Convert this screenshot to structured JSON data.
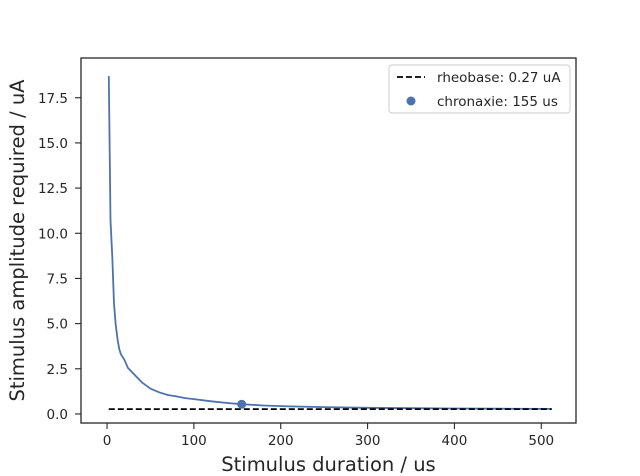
{
  "chart_data": {
    "type": "line",
    "title": "",
    "xlabel": "Stimulus duration / us",
    "ylabel": "Stimulus amplitude required / uA",
    "xlim": [
      -30,
      540
    ],
    "ylim": [
      -0.5,
      19.7
    ],
    "xticks": [
      0,
      100,
      200,
      300,
      400,
      500
    ],
    "xtick_labels": [
      "0",
      "100",
      "200",
      "300",
      "400",
      "500"
    ],
    "yticks": [
      0.0,
      2.5,
      5.0,
      7.5,
      10.0,
      12.5,
      15.0,
      17.5
    ],
    "ytick_labels": [
      "0.0",
      "2.5",
      "5.0",
      "7.5",
      "10.0",
      "12.5",
      "15.0",
      "17.5"
    ],
    "grid": false,
    "legend_position": "upper right",
    "series": [
      {
        "kind": "line",
        "color": "#4c72b0",
        "x": [
          2,
          4,
          6,
          8,
          10,
          12,
          14,
          16,
          20,
          24,
          30,
          40,
          50,
          60,
          70,
          80,
          90,
          100,
          120,
          140,
          155,
          180,
          210,
          250,
          300,
          350,
          400,
          450,
          512
        ],
        "y": [
          18.7,
          10.7,
          8.7,
          6.1,
          4.95,
          4.15,
          3.6,
          3.3,
          3.0,
          2.55,
          2.25,
          1.75,
          1.4,
          1.2,
          1.05,
          0.97,
          0.88,
          0.82,
          0.7,
          0.6,
          0.54,
          0.47,
          0.42,
          0.38,
          0.34,
          0.32,
          0.3,
          0.29,
          0.28
        ]
      },
      {
        "kind": "hline",
        "name": "rheobase: 0.27 uA",
        "color": "#000000",
        "dash": "dashed",
        "x": [
          2,
          512
        ],
        "y": [
          0.27,
          0.27
        ]
      },
      {
        "kind": "point",
        "name": "chronaxie: 155 us",
        "color": "#4c72b0",
        "x": [
          155
        ],
        "y": [
          0.54
        ]
      }
    ]
  }
}
